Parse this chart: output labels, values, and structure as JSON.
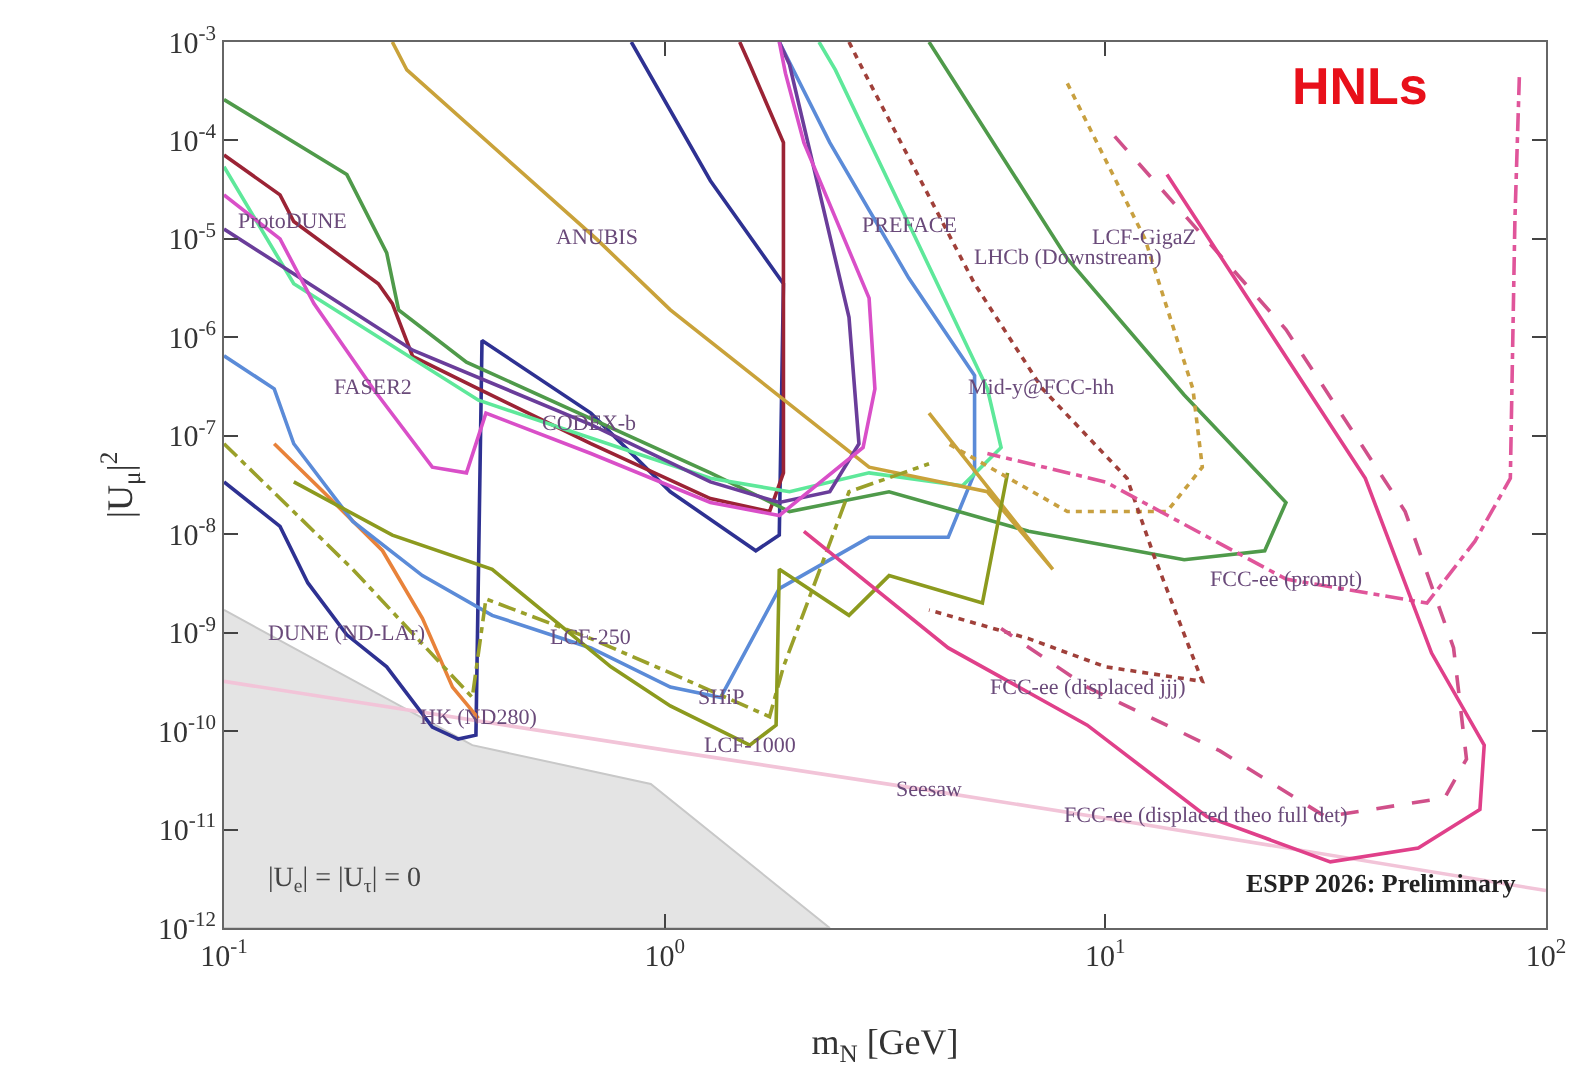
{
  "chart_data": {
    "type": "line",
    "xlabel": "m$_{N}$ [GeV]",
    "ylabel": "|U$_{μ}$|$^{2}$",
    "log": "xy",
    "grid": false,
    "xlim": [
      0.1,
      100
    ],
    "ylim": [
      1e-12,
      0.001
    ],
    "xticks": [
      {
        "value": 0.1,
        "label": "10$^{-1}$"
      },
      {
        "value": 1,
        "label": "10$^{0}$"
      },
      {
        "value": 10,
        "label": "10$^{1}$"
      },
      {
        "value": 100,
        "label": "10$^{2}$"
      }
    ],
    "yticks": [
      {
        "value": 1e-12,
        "label": "10$^{-12}$"
      },
      {
        "value": 1e-11,
        "label": "10$^{-11}$"
      },
      {
        "value": 1e-10,
        "label": "10$^{-10}$"
      },
      {
        "value": 1e-09,
        "label": "10$^{-9}$"
      },
      {
        "value": 1e-08,
        "label": "10$^{-8}$"
      },
      {
        "value": 1e-07,
        "label": "10$^{-7}$"
      },
      {
        "value": 1e-06,
        "label": "10$^{-6}$"
      },
      {
        "value": 1e-05,
        "label": "10$^{-5}$"
      },
      {
        "value": 0.0001,
        "label": "10$^{-4}$"
      },
      {
        "value": 0.001,
        "label": "10$^{-3}$"
      }
    ],
    "series": [
      {
        "type": "area",
        "color": "#e4e4e4",
        "x": [
          0.1,
          0.366,
          0.93,
          2.37
        ],
        "values": [
          1.7e-09,
          7.2e-11,
          2.9e-11,
          1e-12
        ]
      },
      {
        "color": "#f2c4d8",
        "line_style": "solid",
        "x": [
          0.1,
          1.03,
          3.98,
          11.2,
          100
        ],
        "values": [
          3.2e-10,
          6.3e-11,
          2.5e-11,
          1.2e-11,
          2.4e-12
        ]
      },
      {
        "color": "#2e3192",
        "line_style": "solid",
        "x": [
          0.1,
          0.134,
          0.155,
          0.19,
          0.234,
          0.297,
          0.34,
          0.373,
          0.385,
          0.68,
          1.03,
          1.61,
          1.82,
          1.86,
          1.27,
          0.84
        ],
        "values": [
          3.4e-08,
          1.2e-08,
          3.2e-09,
          9.5e-10,
          4.5e-10,
          1.1e-10,
          8.3e-11,
          9.1e-11,
          9.3e-07,
          1.7e-07,
          2.7e-08,
          6.8e-09,
          9.8e-09,
          3.5e-06,
          3.9e-05,
          0.001
        ]
      },
      {
        "color": "#e8823a",
        "line_style": "solid",
        "x": [
          0.13,
          0.168,
          0.229,
          0.282,
          0.33,
          0.378
        ],
        "values": [
          8.3e-08,
          2.7e-08,
          6.8e-09,
          1.4e-09,
          2.8e-10,
          1.35e-10
        ]
      },
      {
        "color": "#5b8bd8",
        "line_style": "solid",
        "x": [
          0.1,
          0.13,
          0.144,
          0.196,
          0.282,
          0.406,
          0.68,
          1.03,
          1.34,
          1.82,
          2.91,
          4.4,
          5.05,
          5.05,
          3.58,
          2.37,
          1.82
        ],
        "values": [
          6.5e-07,
          3e-07,
          8.3e-08,
          1.35e-08,
          3.8e-09,
          1.5e-09,
          7e-10,
          2.8e-10,
          2.2e-10,
          2.8e-09,
          9.3e-09,
          9.3e-09,
          4.2e-08,
          4.1e-07,
          4e-06,
          9.5e-05,
          0.001
        ]
      },
      {
        "color": "#9b2335",
        "line_style": "solid",
        "x": [
          0.1,
          0.134,
          0.144,
          0.224,
          0.241,
          0.268,
          0.378,
          0.68,
          1.27,
          1.73,
          1.86,
          1.86,
          1.56,
          1.48
        ],
        "values": [
          7.1e-05,
          2.8e-05,
          1.5e-05,
          3.5e-06,
          2.2e-06,
          6.4e-07,
          3e-07,
          8.3e-08,
          2.3e-08,
          1.7e-08,
          4.2e-08,
          9.5e-05,
          0.00059,
          0.001
        ]
      },
      {
        "color": "#4f9a4a",
        "line_style": "solid",
        "x": [
          0.1,
          0.19,
          0.234,
          0.249,
          0.355,
          1.27,
          1.92,
          3.23,
          6.7,
          15.1,
          23,
          25.7,
          15.1,
          8.2,
          3.98
        ],
        "values": [
          0.00026,
          4.5e-05,
          7.2e-06,
          1.9e-06,
          5.6e-07,
          4.2e-08,
          1.7e-08,
          2.7e-08,
          1.07e-08,
          5.5e-09,
          6.8e-09,
          2.1e-08,
          2.6e-07,
          6.3e-06,
          0.001
        ]
      },
      {
        "color": "#5ee89a",
        "line_style": "solid",
        "x": [
          0.1,
          0.144,
          0.378,
          1.27,
          1.92,
          2.91,
          4.74,
          5.8,
          5.4,
          3.6,
          2.44,
          2.24
        ],
        "values": [
          5.4e-05,
          3.5e-06,
          2.3e-07,
          3.7e-08,
          2.7e-08,
          4.2e-08,
          3.1e-08,
          7.6e-08,
          3e-07,
          1.35e-05,
          0.00052,
          0.001
        ]
      },
      {
        "color": "#c9a23a",
        "line_style": "solid",
        "x": [
          0.241,
          0.26,
          0.7,
          1.03,
          2.91,
          5.4,
          7.6,
          3.98
        ],
        "values": [
          0.001,
          0.00052,
          1e-05,
          1.9e-06,
          4.8e-08,
          2.7e-08,
          4.4e-09,
          1.7e-07
        ]
      },
      {
        "color": "#6a3d9a",
        "line_style": "solid",
        "x": [
          0.1,
          0.268,
          0.68,
          1.27,
          1.82,
          2.37,
          2.76,
          2.62,
          1.92,
          1.82
        ],
        "values": [
          1.26e-05,
          7.4e-07,
          1.3e-07,
          3.4e-08,
          2.1e-08,
          2.7e-08,
          8.3e-08,
          1.6e-06,
          0.00059,
          0.001
        ]
      },
      {
        "color": "#d94fc8",
        "line_style": "solid",
        "x": [
          0.1,
          0.134,
          0.16,
          0.218,
          0.297,
          0.355,
          0.393,
          0.68,
          1.27,
          1.82,
          2.82,
          3.0,
          2.91,
          2.07,
          1.88,
          1.82
        ],
        "values": [
          2.8e-05,
          1e-05,
          2.2e-06,
          3e-07,
          4.8e-08,
          4.2e-08,
          1.7e-07,
          6.6e-08,
          2.1e-08,
          1.55e-08,
          7.6e-08,
          3e-07,
          2.5e-06,
          9.5e-05,
          0.00048,
          0.001
        ]
      },
      {
        "color": "#9aa02a",
        "line_style": "dashdot",
        "x": [
          0.1,
          0.196,
          0.366,
          0.393,
          0.68,
          1.03,
          1.73,
          1.86,
          2.62,
          3.98
        ],
        "values": [
          8.3e-08,
          4.4e-09,
          2.2e-10,
          2.2e-09,
          8.7e-10,
          3.9e-10,
          1.4e-10,
          4.5e-10,
          2.7e-08,
          5.2e-08
        ]
      },
      {
        "color": "#8c9a1e",
        "line_style": "solid",
        "x": [
          0.144,
          0.241,
          0.406,
          0.755,
          1.03,
          1.56,
          1.79,
          1.82,
          2.62,
          3.23,
          5.26,
          6.0
        ],
        "values": [
          3.4e-08,
          9.8e-09,
          4.4e-09,
          4.5e-10,
          1.8e-10,
          7.2e-11,
          1.15e-10,
          4.4e-09,
          1.5e-09,
          3.8e-09,
          2e-09,
          4.2e-08
        ]
      },
      {
        "color": "#c8a040",
        "line_style": "dotted",
        "x": [
          8.2,
          12.3,
          15.8,
          16.6,
          13.8,
          8.2,
          4.4
        ],
        "values": [
          0.00038,
          1e-05,
          3e-07,
          4.8e-08,
          1.7e-08,
          1.7e-08,
          8.3e-08
        ]
      },
      {
        "color": "#a0403a",
        "line_style": "dotted",
        "x": [
          2.62,
          2.82,
          5.05,
          7.2,
          11.2,
          12.9,
          16.6,
          10,
          6.7,
          3.98
        ],
        "values": [
          0.001,
          0.00052,
          3.5e-06,
          3e-07,
          3.7e-08,
          6e-09,
          3.2e-10,
          4.5e-10,
          8.7e-10,
          1.7e-09
        ]
      },
      {
        "color": "#e0559a",
        "line_style": "dashdot",
        "x": [
          87,
          85,
          83,
          69,
          53.7,
          25.7,
          10,
          5.4
        ],
        "values": [
          0.00044,
          1.55e-05,
          3.7e-08,
          8.5e-09,
          2e-09,
          3.5e-09,
          3.4e-08,
          6.6e-08
        ]
      },
      {
        "color": "#d0508a",
        "line_style": "dashed",
        "x": [
          10.5,
          25.7,
          47.9,
          61.7,
          66,
          58.9,
          31.6,
          18.2,
          9.1,
          5.8
        ],
        "values": [
          0.00011,
          1.2e-06,
          1.7e-08,
          7e-10,
          5.2e-11,
          2.1e-11,
          1.35e-11,
          6.3e-11,
          2.8e-10,
          1.1e-09
        ]
      },
      {
        "color": "#e0408a",
        "line_style": "solid",
        "x": [
          13.8,
          38.9,
          55,
          72.4,
          70.8,
          51.3,
          32.4,
          17,
          9.1,
          4.4,
          2.07
        ],
        "values": [
          4.5e-05,
          3.7e-08,
          6.2e-10,
          7.2e-11,
          1.6e-11,
          6.5e-12,
          4.7e-12,
          1.35e-11,
          1.15e-10,
          7e-10,
          1.07e-08
        ]
      }
    ],
    "annotations": [
      "HNLs",
      "|U$_{e}$| = |U$_{τ}$| = 0",
      "ESPP 2026: Preliminary",
      {
        "text": "ProtoDUNE",
        "x": 0.144,
        "y": 1.5e-05
      },
      {
        "text": "ANUBIS",
        "x": 0.7,
        "y": 1e-05
      },
      {
        "text": "FASER2",
        "x": 0.218,
        "y": 3e-07
      },
      {
        "text": "CODEX-b",
        "x": 0.68,
        "y": 1.3e-07
      },
      {
        "text": "DUNE (ND-LAr)",
        "x": 0.19,
        "y": 9.5e-10
      },
      {
        "text": "HK (ND280)",
        "x": 0.378,
        "y": 1.35e-10
      },
      {
        "text": "SHiP",
        "x": 1.34,
        "y": 2.2e-10
      },
      {
        "text": "LCF-250",
        "x": 0.68,
        "y": 8.7e-10
      },
      {
        "text": "LCF-1000",
        "x": 1.56,
        "y": 7.2e-11
      },
      {
        "text": "PREFACE",
        "x": 3.6,
        "y": 1.35e-05
      },
      {
        "text": "LHCb (Downstream)",
        "x": 8.2,
        "y": 6.3e-06
      },
      {
        "text": "LCF-GigaZ",
        "x": 12.3,
        "y": 1e-05
      },
      {
        "text": "Mid-y@FCC-hh",
        "x": 7.2,
        "y": 3e-07
      },
      {
        "text": "FCC-ee (prompt)",
        "x": 25.7,
        "y": 3.5e-09
      },
      {
        "text": "FCC-ee (displaced jjj)",
        "x": 9.1,
        "y": 2.8e-10
      },
      {
        "text": "FCC-ee (displaced theo full det)",
        "x": 17,
        "y": 1.35e-11
      },
      {
        "text": "Seesaw",
        "x": 3.98,
        "y": 2.5e-11
      }
    ]
  }
}
